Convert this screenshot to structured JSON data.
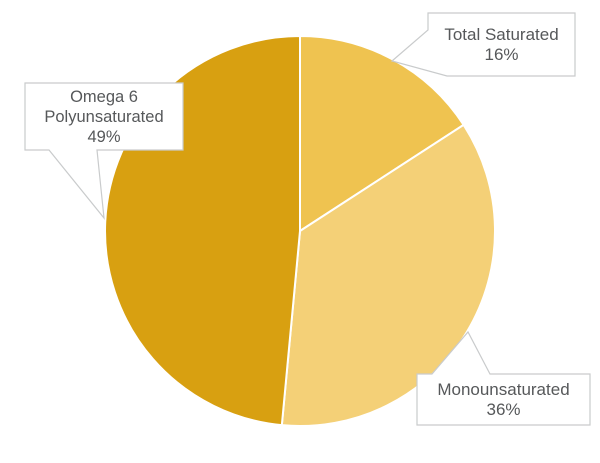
{
  "chart_data": {
    "type": "pie",
    "title": "",
    "legend": "none",
    "value_unit": "percent",
    "start_angle": "12 o'clock",
    "direction": "clockwise",
    "slices": [
      {
        "label": "Total Saturated",
        "label_lines": [
          "Total Saturated"
        ],
        "value": 16,
        "pct_label": "16%",
        "color": "#efc350"
      },
      {
        "label": "Monounsaturated",
        "label_lines": [
          "Monounsaturated"
        ],
        "value": 36,
        "pct_label": "36%",
        "color": "#f4d077"
      },
      {
        "label": "Omega 6 Polyunsaturated",
        "label_lines": [
          "Omega 6",
          "Polyunsaturated"
        ],
        "value": 49,
        "pct_label": "49%",
        "color": "#d8a011"
      }
    ],
    "styles": {
      "background": "#ffffff",
      "slice_divider_color": "#ffffff",
      "callout_fill": "#ffffff",
      "callout_border_color": "#c9cbcc",
      "callout_text_color": "#56585a"
    }
  }
}
